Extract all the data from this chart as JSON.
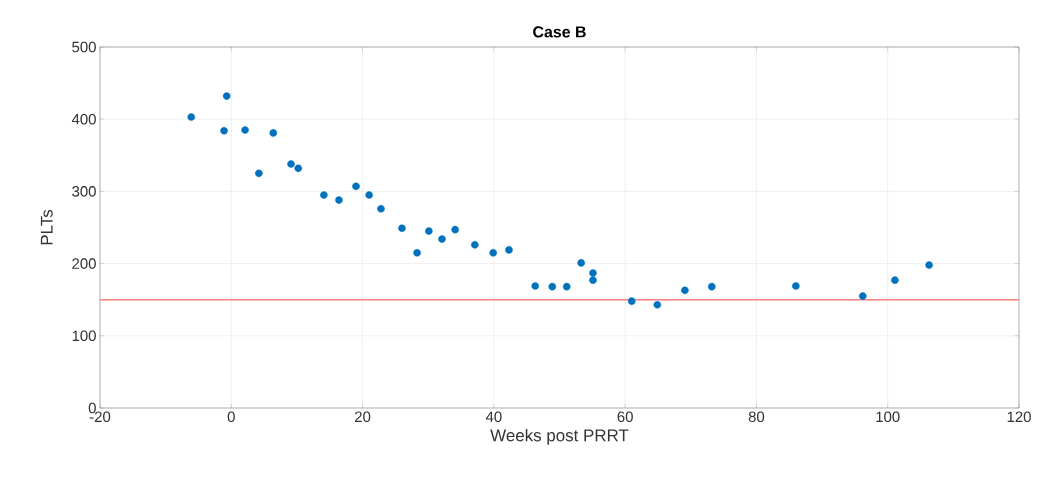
{
  "chart_data": {
    "type": "scatter",
    "title": "Case B",
    "xlabel": "Weeks post PRRT",
    "ylabel": "PLTs",
    "x": [
      -6.1,
      -1.1,
      -0.7,
      2.1,
      4.2,
      6.4,
      9.1,
      10.2,
      14.1,
      16.4,
      19.0,
      21.0,
      22.8,
      26.0,
      28.3,
      30.1,
      32.1,
      34.1,
      37.1,
      39.9,
      42.3,
      46.3,
      48.9,
      51.1,
      53.3,
      55.1,
      55.1,
      61.0,
      64.9,
      69.1,
      73.2,
      86.0,
      96.2,
      101.1,
      106.3
    ],
    "series": [
      {
        "color": "#0072bd",
        "values": [
          403,
          384,
          432,
          385,
          325,
          381,
          338,
          332,
          295,
          288,
          307,
          295,
          276,
          249,
          215,
          245,
          234,
          247,
          226,
          215,
          219,
          169,
          168,
          168,
          201,
          187,
          177,
          148,
          143,
          163,
          168,
          169,
          155,
          177,
          198
        ]
      }
    ],
    "marker": "circle",
    "xlim": [
      -20,
      120
    ],
    "xticks": [
      -20,
      0,
      20,
      40,
      60,
      80,
      100,
      120
    ],
    "ylim": [
      0,
      500
    ],
    "yticks": [
      0,
      100,
      200,
      300,
      400,
      500
    ],
    "grid": true,
    "ref_lines": [
      {
        "axis": "y",
        "value": 150,
        "color": "#ff7f7f"
      }
    ]
  }
}
